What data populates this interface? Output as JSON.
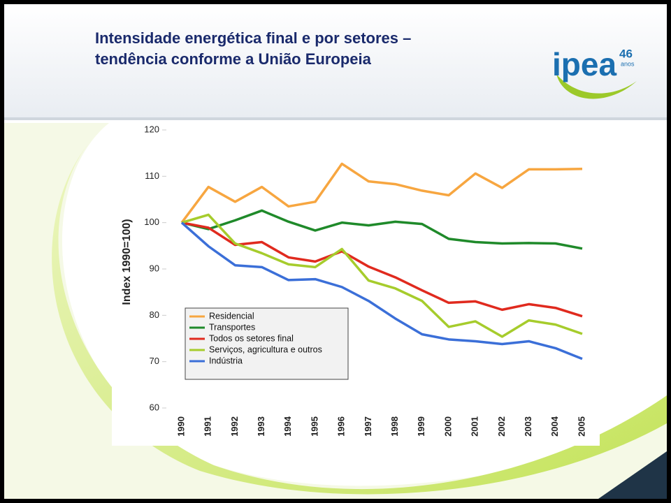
{
  "header": {
    "title_lines": [
      "Intensidade energética final e por setores –",
      "tendência conforme a União Europeia"
    ]
  },
  "logo": {
    "name": "ipea",
    "number": "46",
    "unit": "anos"
  },
  "chart_data": {
    "type": "line",
    "y_label": "Index 1990=100)",
    "categories": [
      "1990",
      "1991",
      "1992",
      "1993",
      "1994",
      "1995",
      "1996",
      "1997",
      "1998",
      "1999",
      "2000",
      "2001",
      "2002",
      "2003",
      "2004",
      "2005"
    ],
    "series": [
      {
        "name": "Residencial",
        "color": "#f7a640",
        "values": [
          100,
          107.7,
          104.5,
          107.7,
          103.5,
          104.5,
          112.7,
          108.9,
          108.3,
          106.9,
          105.9,
          110.6,
          107.5,
          111.5,
          111.5,
          111.6
        ]
      },
      {
        "name": "Transportes",
        "color": "#1f8a2a",
        "values": [
          100,
          98.6,
          100.5,
          102.6,
          100.2,
          98.3,
          100,
          99.4,
          100.2,
          99.7,
          96.5,
          95.8,
          95.5,
          95.6,
          95.5,
          94.4
        ]
      },
      {
        "name": "Todos os setores final",
        "color": "#e02a1e",
        "values": [
          100,
          98.9,
          95.2,
          95.8,
          92.5,
          91.6,
          93.8,
          90.5,
          88.2,
          85.4,
          82.7,
          83,
          81.2,
          82.4,
          81.6,
          79.8
        ]
      },
      {
        "name": "Serviços, agricultura e outros",
        "color": "#a6cc2c",
        "values": [
          100,
          101.7,
          95.5,
          93.4,
          91,
          90.4,
          94.3,
          87.5,
          85.8,
          83.1,
          77.5,
          78.7,
          75.4,
          78.9,
          78,
          76
        ]
      },
      {
        "name": "Indústria",
        "color": "#3b6fd8",
        "values": [
          100,
          94.9,
          90.8,
          90.4,
          87.6,
          87.8,
          86.1,
          83.1,
          79.3,
          75.9,
          74.8,
          74.4,
          73.8,
          74.4,
          72.9,
          70.6
        ]
      }
    ],
    "ylim": [
      60,
      120
    ],
    "yticks": [
      60,
      70,
      80,
      90,
      100,
      110,
      120
    ],
    "grid": false
  }
}
